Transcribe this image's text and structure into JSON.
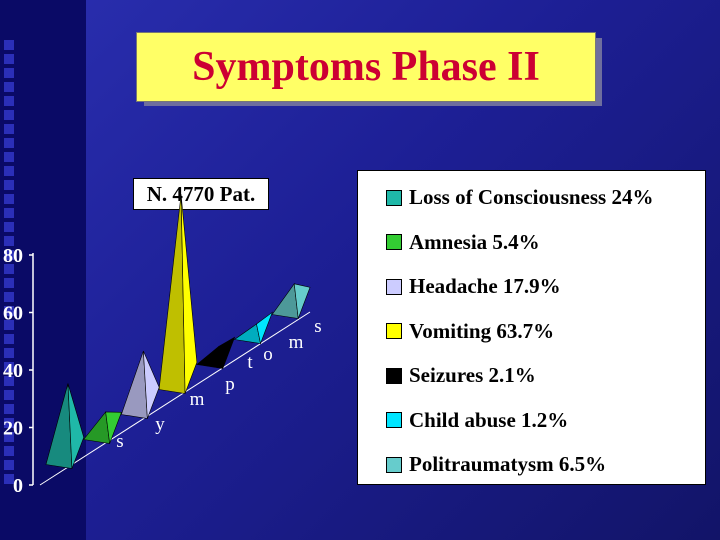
{
  "slide": {
    "title": "Symptoms Phase II",
    "subtitle_box": "N. 4770 Pat."
  },
  "colors": {
    "background": "#2427a8",
    "title_bg": "#ffff66",
    "title_text": "#cc0033"
  },
  "chart_data": {
    "type": "bar",
    "style": "3d-pyramid",
    "categories": [
      "Loss of Consciousness",
      "Amnesia",
      "Headache",
      "Vomiting",
      "Seizures",
      "Child abuse",
      "Politraumatysm"
    ],
    "values": [
      24,
      5.4,
      17.9,
      63.7,
      2.1,
      1.2,
      6.5
    ],
    "colors": [
      "#1fb8a8",
      "#33cc33",
      "#ccccff",
      "#ffff00",
      "#000000",
      "#00e5ff",
      "#66cccc"
    ],
    "legend": [
      {
        "label": "Loss of Consciousness 24%",
        "color": "#1fb8a8"
      },
      {
        "label": "Amnesia 5.4%",
        "color": "#33cc33"
      },
      {
        "label": "Headache 17.9%",
        "color": "#ccccff"
      },
      {
        "label": "Vomiting 63.7%",
        "color": "#ffff00"
      },
      {
        "label": "Seizures 2.1%",
        "color": "#000000"
      },
      {
        "label": "Child abuse 1.2%",
        "color": "#00e5ff"
      },
      {
        "label": "Politraumatysm 6.5%",
        "color": "#66cccc"
      }
    ],
    "legend_position": "right",
    "axis_labels": [
      "s",
      "y",
      "m",
      "p",
      "t",
      "o",
      "m",
      "s"
    ],
    "yticks": [
      "0",
      "20",
      "40",
      "60",
      "80"
    ],
    "ylim": [
      0,
      80
    ],
    "grid": false
  }
}
